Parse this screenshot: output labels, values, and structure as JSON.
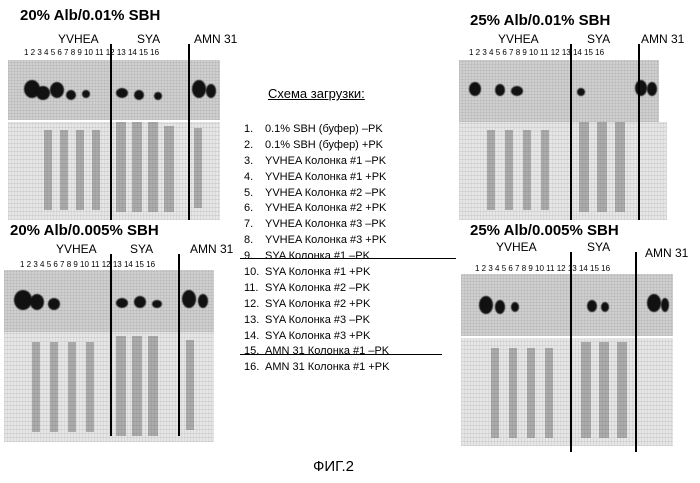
{
  "panels": [
    {
      "id": "top-left",
      "title": "20% Alb/0.01% SBH",
      "groups": [
        "YVHEA",
        "SYA",
        "AMN 31"
      ],
      "lanes": "1 2 3 4 5 6 7 8 9 10 11 12 13 14 15 16"
    },
    {
      "id": "top-right",
      "title": "25% Alb/0.01% SBH",
      "groups": [
        "YVHEA",
        "SYA",
        "AMN 31"
      ],
      "lanes": "1 2 3 4 5 6 7 8 9 10 11 12 13 14 15 16"
    },
    {
      "id": "bottom-left",
      "title": "20% Alb/0.005% SBH",
      "groups": [
        "YVHEA",
        "SYA",
        "AMN 31"
      ],
      "lanes": "1 2 3 4 5 6 7 8 9 10 11 12 13 14 15 16"
    },
    {
      "id": "bottom-right",
      "title": "25% Alb/0.005% SBH",
      "groups": [
        "YVHEA",
        "SYA",
        "AMN 31"
      ],
      "lanes": "1 2 3 4 5 6 7 8 9 10 11 12 13 14 15 16"
    }
  ],
  "legend": {
    "title": "Схема загрузки:",
    "items": [
      {
        "num": "1.",
        "text": "0.1% SBH (буфер) –PK"
      },
      {
        "num": "2.",
        "text": "0.1% SBH (буфер) +PK"
      },
      {
        "num": "3.",
        "text": "YVHEA Колонка #1 –PK"
      },
      {
        "num": "4.",
        "text": "YVHEA Колонка #1 +PK"
      },
      {
        "num": "5.",
        "text": "YVHEA Колонка #2 –PK"
      },
      {
        "num": "6.",
        "text": "YVHEA Колонка #2 +PK"
      },
      {
        "num": "7.",
        "text": "YVHEA Колонка #3 –PK"
      },
      {
        "num": "8.",
        "text": "YVHEA Колонка #3 +PK"
      },
      {
        "num": "9.",
        "text": "SYA Колонка #1 –PK"
      },
      {
        "num": "10.",
        "text": "SYA Колонка #1 +PK"
      },
      {
        "num": "11.",
        "text": "SYA Колонка #2 –PK"
      },
      {
        "num": "12.",
        "text": "SYA Колонка #2 +PK"
      },
      {
        "num": "13.",
        "text": "SYA Колонка #3 –PK"
      },
      {
        "num": "14.",
        "text": "SYA Колонка #3 +PK"
      },
      {
        "num": "15.",
        "text": "AMN 31 Колонка #1 –PK"
      },
      {
        "num": "16.",
        "text": "AMN 31 Колонка #1 +PK"
      }
    ]
  },
  "caption": "ФИГ.2"
}
